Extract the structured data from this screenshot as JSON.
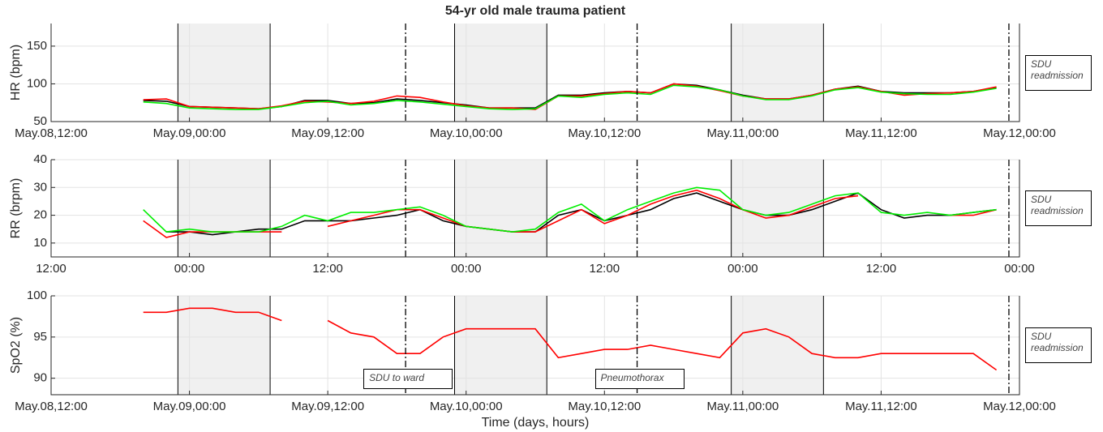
{
  "chart_data": [
    {
      "type": "line",
      "title": "54-yr old male trauma patient",
      "ylabel": "HR (bpm)",
      "grid": true,
      "night_color": "#f0f0f0",
      "xlim": [
        "May.08,12:00",
        "May.12,00:00"
      ],
      "ylim": [
        50,
        180
      ],
      "yticks": [
        50,
        100,
        150
      ],
      "xticks": [
        "May.08,12:00",
        "May.09,00:00",
        "May.09,12:00",
        "May.10,00:00",
        "May.10,12:00",
        "May.11,00:00",
        "May.11,12:00",
        "May.12,00:00"
      ],
      "night_periods": [
        [
          "May.08,23:00",
          "May.09,07:00"
        ],
        [
          "May.09,23:00",
          "May.10,07:00"
        ],
        [
          "May.10,23:00",
          "May.11,07:00"
        ]
      ],
      "events": [
        {
          "x": "May.09,18:45"
        },
        {
          "x": "May.10,14:50"
        },
        {
          "x": "May.11,23:05",
          "label": "SDU readmission"
        }
      ],
      "x": [
        "May.08,20:00",
        "May.08,22:00",
        "May.09,00:00",
        "May.09,02:00",
        "May.09,04:00",
        "May.09,06:00",
        "May.09,08:00",
        "May.09,10:00",
        "May.09,12:00",
        "May.09,14:00",
        "May.09,16:00",
        "May.09,18:00",
        "May.09,20:00",
        "May.09,22:00",
        "May.10,00:00",
        "May.10,02:00",
        "May.10,04:00",
        "May.10,06:00",
        "May.10,08:00",
        "May.10,10:00",
        "May.10,12:00",
        "May.10,14:00",
        "May.10,16:00",
        "May.10,18:00",
        "May.10,20:00",
        "May.10,22:00",
        "May.11,00:00",
        "May.11,02:00",
        "May.11,04:00",
        "May.11,06:00",
        "May.11,08:00",
        "May.11,10:00",
        "May.11,12:00",
        "May.11,14:00",
        "May.11,16:00",
        "May.11,18:00",
        "May.11,20:00",
        "May.11,22:00"
      ],
      "series": [
        {
          "color": "#000000",
          "values": [
            78,
            77,
            70,
            69,
            68,
            67,
            70,
            78,
            78,
            74,
            75,
            80,
            78,
            75,
            72,
            68,
            68,
            68,
            85,
            85,
            88,
            90,
            88,
            100,
            98,
            92,
            85,
            80,
            80,
            85,
            93,
            97,
            90,
            88,
            88,
            88,
            90,
            95
          ]
        },
        {
          "color": "#ff0000",
          "values": [
            79,
            80,
            70,
            69,
            68,
            67,
            71,
            77,
            76,
            74,
            77,
            84,
            82,
            76,
            71,
            68,
            68,
            66,
            84,
            84,
            87,
            90,
            88,
            100,
            97,
            91,
            84,
            80,
            80,
            85,
            93,
            96,
            90,
            85,
            87,
            88,
            90,
            96
          ]
        },
        {
          "color": "#00ee00",
          "values": [
            76,
            74,
            68,
            67,
            66,
            66,
            70,
            75,
            77,
            72,
            74,
            78,
            76,
            73,
            70,
            67,
            66,
            67,
            84,
            82,
            86,
            88,
            86,
            98,
            96,
            92,
            84,
            79,
            79,
            84,
            92,
            95,
            89,
            87,
            86,
            86,
            89,
            94
          ]
        }
      ]
    },
    {
      "type": "line",
      "ylabel": "RR (brpm)",
      "grid": true,
      "night_color": "#f0f0f0",
      "xlim": [
        "May.08,12:00",
        "May.12,00:00"
      ],
      "ylim": [
        5,
        40
      ],
      "yticks": [
        10,
        20,
        30,
        40
      ],
      "xticks": [
        {
          "value": "May.08,12:00",
          "label": "12:00"
        },
        {
          "value": "May.09,00:00",
          "label": "00:00"
        },
        {
          "value": "May.09,12:00",
          "label": "12:00"
        },
        {
          "value": "May.10,00:00",
          "label": "00:00"
        },
        {
          "value": "May.10,12:00",
          "label": "12:00"
        },
        {
          "value": "May.11,00:00",
          "label": "00:00"
        },
        {
          "value": "May.11,12:00",
          "label": "12:00"
        },
        {
          "value": "May.12,00:00",
          "label": "00:00"
        }
      ],
      "night_periods": [
        [
          "May.08,23:00",
          "May.09,07:00"
        ],
        [
          "May.09,23:00",
          "May.10,07:00"
        ],
        [
          "May.10,23:00",
          "May.11,07:00"
        ]
      ],
      "events": [
        {
          "x": "May.09,18:45"
        },
        {
          "x": "May.10,14:50"
        },
        {
          "x": "May.11,23:05",
          "label": "SDU readmission"
        }
      ],
      "x": [
        "May.08,20:00",
        "May.08,22:00",
        "May.09,00:00",
        "May.09,02:00",
        "May.09,04:00",
        "May.09,06:00",
        "May.09,08:00",
        "May.09,10:00",
        "May.09,12:00",
        "May.09,14:00",
        "May.09,16:00",
        "May.09,18:00",
        "May.09,20:00",
        "May.09,22:00",
        "May.10,00:00",
        "May.10,02:00",
        "May.10,04:00",
        "May.10,06:00",
        "May.10,08:00",
        "May.10,10:00",
        "May.10,12:00",
        "May.10,14:00",
        "May.10,16:00",
        "May.10,18:00",
        "May.10,20:00",
        "May.10,22:00",
        "May.11,00:00",
        "May.11,02:00",
        "May.11,04:00",
        "May.11,06:00",
        "May.11,08:00",
        "May.11,10:00",
        "May.11,12:00",
        "May.11,14:00",
        "May.11,16:00",
        "May.11,18:00",
        "May.11,20:00",
        "May.11,22:00"
      ],
      "series": [
        {
          "color": "#000000",
          "values": [
            null,
            14,
            14,
            13,
            14,
            15,
            15,
            18,
            18,
            18,
            19,
            20,
            22,
            18,
            16,
            15,
            14,
            14,
            20,
            22,
            18,
            20,
            22,
            26,
            28,
            25,
            22,
            20,
            20,
            22,
            25,
            28,
            22,
            19,
            20,
            20,
            21,
            22
          ]
        },
        {
          "color": "#ff0000",
          "values": [
            18,
            12,
            14,
            14,
            14,
            14,
            14,
            null,
            16,
            18,
            20,
            22,
            22,
            19,
            16,
            15,
            14,
            14,
            18,
            22,
            17,
            20,
            24,
            27,
            29,
            26,
            22,
            19,
            20,
            23,
            26,
            27,
            null,
            18,
            null,
            20,
            20,
            22
          ]
        },
        {
          "color": "#00ee00",
          "values": [
            22,
            14,
            15,
            14,
            14,
            14,
            16,
            20,
            18,
            21,
            21,
            22,
            23,
            20,
            16,
            15,
            14,
            15,
            21,
            24,
            18,
            22,
            25,
            28,
            30,
            29,
            22,
            20,
            21,
            24,
            27,
            28,
            21,
            20,
            21,
            20,
            21,
            22
          ]
        }
      ]
    },
    {
      "type": "line",
      "ylabel": "SpO2 (%)",
      "xlabel": "Time (days, hours)",
      "grid": true,
      "night_color": "#f0f0f0",
      "xlim": [
        "May.08,12:00",
        "May.12,00:00"
      ],
      "ylim": [
        88,
        100
      ],
      "yticks": [
        90,
        95,
        100
      ],
      "xticks": [
        "May.08,12:00",
        "May.09,00:00",
        "May.09,12:00",
        "May.10,00:00",
        "May.10,12:00",
        "May.11,00:00",
        "May.11,12:00",
        "May.12,00:00"
      ],
      "night_periods": [
        [
          "May.08,23:00",
          "May.09,07:00"
        ],
        [
          "May.09,23:00",
          "May.10,07:00"
        ],
        [
          "May.10,23:00",
          "May.11,07:00"
        ]
      ],
      "events": [
        {
          "x": "May.09,18:45",
          "label": "SDU to ward"
        },
        {
          "x": "May.10,14:50",
          "label": "Pneumothorax"
        },
        {
          "x": "May.11,23:05",
          "label": "SDU readmission"
        }
      ],
      "x": [
        "May.08,20:00",
        "May.08,22:00",
        "May.09,00:00",
        "May.09,02:00",
        "May.09,04:00",
        "May.09,06:00",
        "May.09,08:00",
        "May.09,10:00",
        "May.09,12:00",
        "May.09,14:00",
        "May.09,16:00",
        "May.09,18:00",
        "May.09,20:00",
        "May.09,22:00",
        "May.10,00:00",
        "May.10,02:00",
        "May.10,04:00",
        "May.10,06:00",
        "May.10,08:00",
        "May.10,10:00",
        "May.10,12:00",
        "May.10,14:00",
        "May.10,16:00",
        "May.10,18:00",
        "May.10,20:00",
        "May.10,22:00",
        "May.11,00:00",
        "May.11,02:00",
        "May.11,04:00",
        "May.11,06:00",
        "May.11,08:00",
        "May.11,10:00",
        "May.11,12:00",
        "May.11,14:00",
        "May.11,16:00",
        "May.11,18:00",
        "May.11,20:00",
        "May.11,22:00"
      ],
      "series": [
        {
          "color": "#ff0000",
          "values": [
            98,
            98,
            98.5,
            98.5,
            98,
            98,
            97,
            null,
            97,
            95.5,
            95,
            93,
            93,
            95,
            96,
            96,
            96,
            96,
            92.5,
            93,
            93.5,
            93.5,
            94,
            93.5,
            93,
            92.5,
            95.5,
            96,
            95,
            93,
            92.5,
            92.5,
            93,
            93,
            93,
            93,
            93,
            91
          ]
        }
      ]
    }
  ]
}
